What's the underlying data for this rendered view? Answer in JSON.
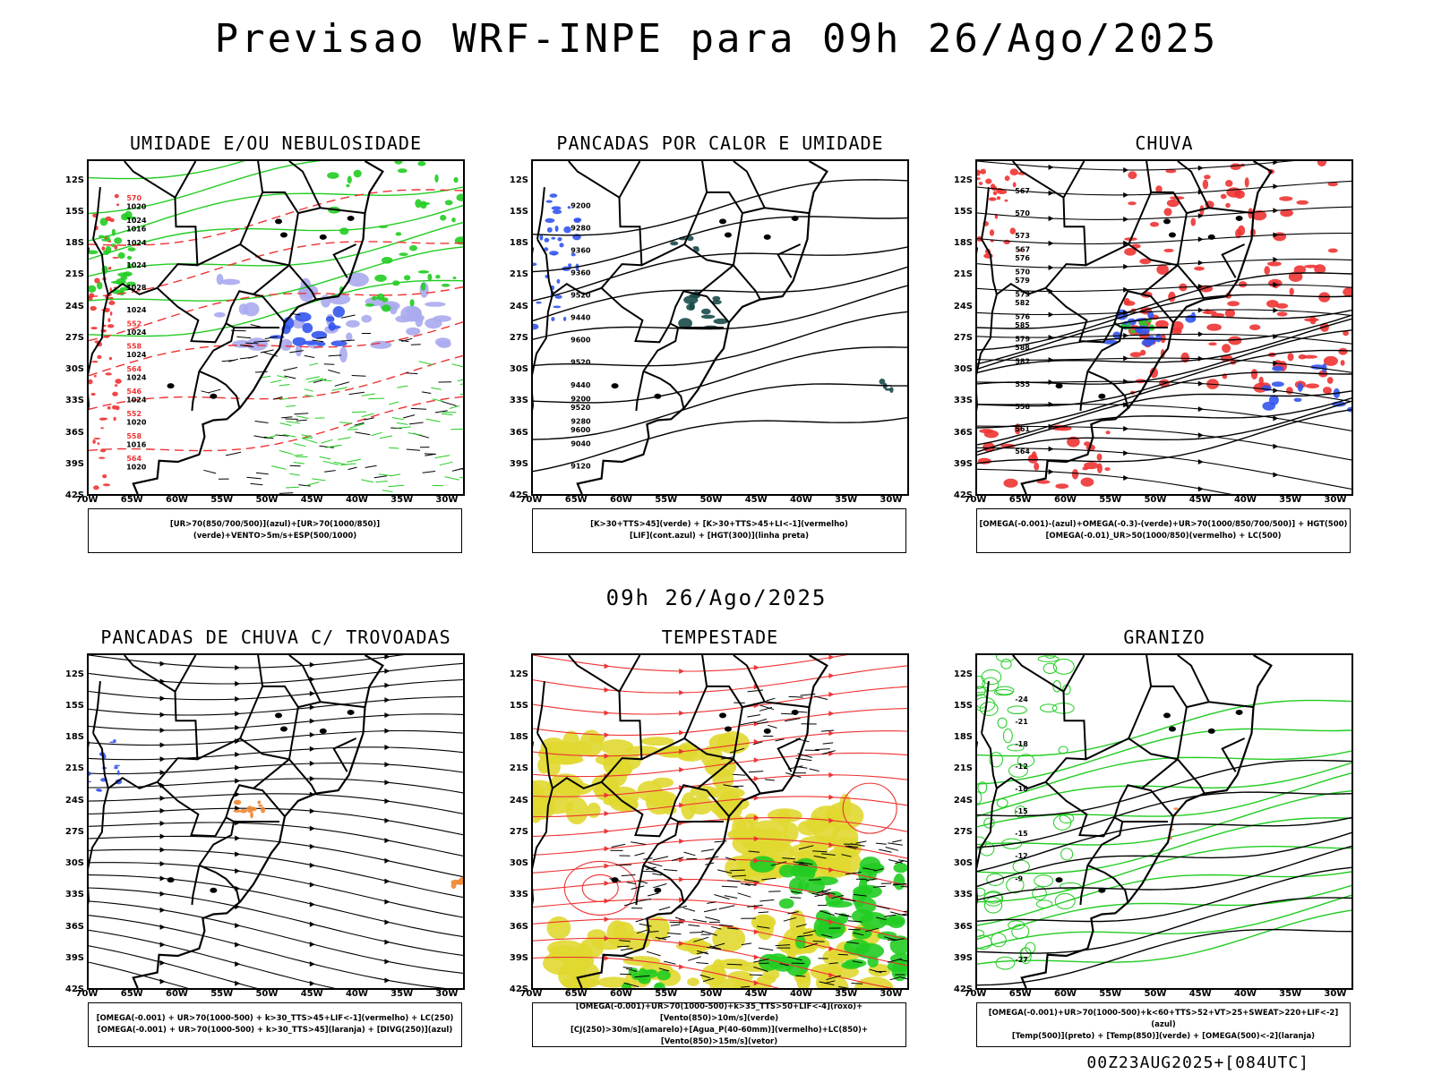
{
  "main_title": "Previsao WRF-INPE  para 09h 26/Ago/2025",
  "mid_title": "09h 26/Ago/2025",
  "footer": "00Z23AUG2025+[084UTC]",
  "lat_labels": [
    "12S",
    "15S",
    "18S",
    "21S",
    "24S",
    "27S",
    "30S",
    "33S",
    "36S",
    "39S",
    "42S"
  ],
  "lon_labels": [
    "70W",
    "65W",
    "60W",
    "55W",
    "50W",
    "45W",
    "40W",
    "35W",
    "30W"
  ],
  "panels": [
    {
      "title": "UMIDADE E/OU NEBULOSIDADE",
      "legend": [
        "[UR>70(850/700/500)](azul)+[UR>70(1000/850)](verde)+VENTO>5m/s+ESP(500/1000)"
      ],
      "labels": [
        "1016",
        "1020",
        "1020",
        "1016",
        "1020",
        "1024",
        "1024",
        "1024",
        "1024",
        "1024",
        "1028",
        "1024",
        "1024",
        "1024",
        "570",
        "564",
        "558",
        "552",
        "546",
        "564",
        "558",
        "552"
      ]
    },
    {
      "title": "PANCADAS POR CALOR E UMIDADE",
      "legend": [
        "[K>30+TTS>45](verde) + [K>30+TTS>45+LI<-1](vermelho)",
        "[LIF](cont.azul) + [HGT(300)](linha preta)"
      ],
      "labels": [
        "9600",
        "9520",
        "9440",
        "9520",
        "9600",
        "9440",
        "9520",
        "9360",
        "9360",
        "9280",
        "9200",
        "9120",
        "9040",
        "9280",
        "9200"
      ]
    },
    {
      "title": "CHUVA",
      "legend": [
        "[OMEGA(-0.001)-(azul)+OMEGA(-0.3)-(verde)+UR>70(1000/850/700/500)] + HGT(500)",
        "[OMEGA(-0.01)_UR>50(1000/850)(vermelho) + LC(500)"
      ],
      "labels": [
        "588",
        "585",
        "582",
        "579",
        "576",
        "573",
        "570",
        "567",
        "564",
        "561",
        "558",
        "555",
        "582",
        "579",
        "576",
        "573",
        "570",
        "567"
      ]
    },
    {
      "title": "PANCADAS DE CHUVA C/ TROVOADAS",
      "legend": [
        "[OMEGA(-0.001) + UR>70(1000-500) + k>30_TTS>45+LIF<-1](vermelho) + LC(250)",
        "[OMEGA(-0.001) + UR>70(1000-500) + k>30_TTS>45](laranja) + [DIVG(250)](azul)"
      ],
      "labels": []
    },
    {
      "title": "TEMPESTADE",
      "legend": [
        "[OMEGA(-0.001)+UR>70(1000-500)+k>35_TTS>50+LIF<-4](roxo)+[Vento(850)>10m/s](verde)",
        "[CJ(250)>30m/s](amarelo)+[Agua_P(40-60mm)](vermelho)+LC(850)+[Vento(850)>15m/s](vetor)"
      ],
      "labels": []
    },
    {
      "title": "GRANIZO",
      "legend": [
        "[OMEGA(-0.001)+UR>70(1000-500)+k<60+TTS>52+VT>25+SWEAT>220+LIF<-2](azul)",
        "[Temp(500)](preto) + [Temp(850)](verde) + [OMEGA(500)<-2](laranja)"
      ],
      "labels": [
        "-9",
        "-12",
        "-15",
        "-15",
        "-18",
        "-12",
        "-18",
        "-21",
        "-24",
        "-27"
      ]
    }
  ],
  "colors": {
    "coast": "#000000",
    "green": "#22cc22",
    "red": "#ee3333",
    "blue": "#3355ee",
    "lavender": "#aaaaee",
    "yellow": "#e0d830",
    "orange": "#ee8833",
    "darkteal": "#1a4a4a"
  }
}
